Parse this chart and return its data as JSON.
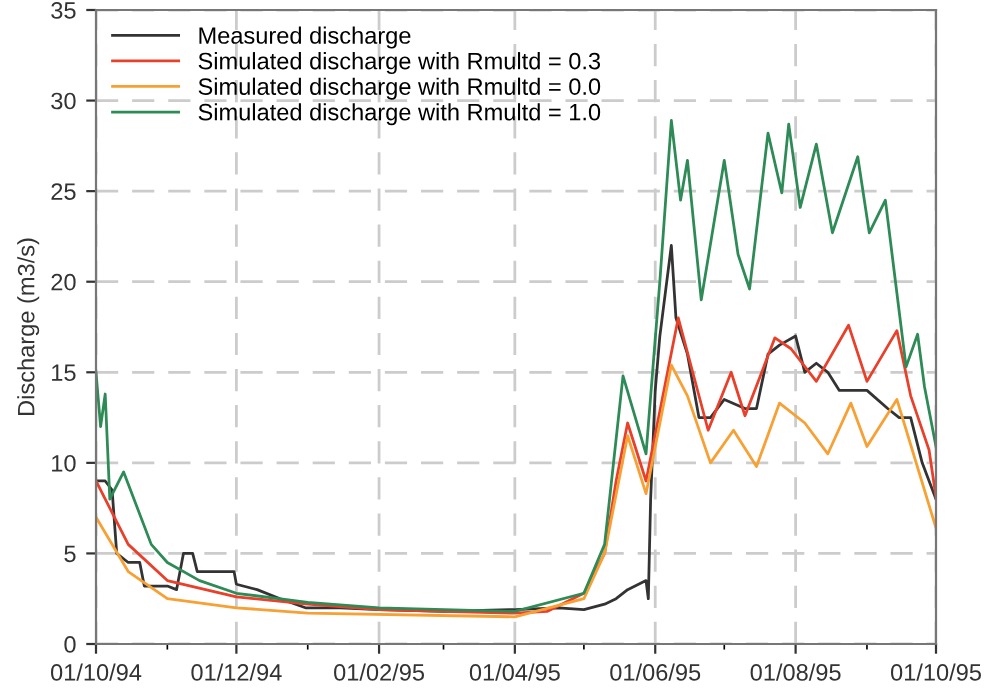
{
  "chart_data": {
    "type": "line",
    "ylabel": "Discharge (m3/s)",
    "ylim": [
      0,
      35
    ],
    "yticks": [
      0,
      5,
      10,
      15,
      20,
      25,
      30,
      35
    ],
    "xlim": [
      "1994-10-01",
      "1995-10-01"
    ],
    "xticks": [
      {
        "value": "1994-10-01",
        "label": "01/10/94"
      },
      {
        "value": "1994-12-01",
        "label": "01/12/94"
      },
      {
        "value": "1995-02-01",
        "label": "01/02/95"
      },
      {
        "value": "1995-04-01",
        "label": "01/04/95"
      },
      {
        "value": "1995-06-01",
        "label": "01/06/95"
      },
      {
        "value": "1995-08-01",
        "label": "01/08/95"
      },
      {
        "value": "1995-10-01",
        "label": "01/10/95"
      }
    ],
    "grid": true,
    "legend": "top left",
    "line_style": "solid",
    "marker": "none",
    "series": [
      {
        "name": "Measured discharge",
        "color": "#333333",
        "x": [
          "1994-10-01",
          "1994-10-05",
          "1994-10-08",
          "1994-10-10",
          "1994-10-15",
          "1994-10-20",
          "1994-10-22",
          "1994-11-01",
          "1994-11-05",
          "1994-11-08",
          "1994-11-12",
          "1994-11-14",
          "1994-11-30",
          "1994-12-01",
          "1994-12-10",
          "1994-12-20",
          "1994-12-31",
          "1995-01-15",
          "1995-02-01",
          "1995-03-01",
          "1995-04-01",
          "1995-04-20",
          "1995-05-01",
          "1995-05-10",
          "1995-05-15",
          "1995-05-20",
          "1995-05-28",
          "1995-05-29",
          "1995-05-30",
          "1995-06-01",
          "1995-06-03",
          "1995-06-08",
          "1995-06-10",
          "1995-06-15",
          "1995-06-20",
          "1995-06-25",
          "1995-07-01",
          "1995-07-10",
          "1995-07-15",
          "1995-07-20",
          "1995-07-25",
          "1995-08-01",
          "1995-08-05",
          "1995-08-10",
          "1995-08-15",
          "1995-08-20",
          "1995-09-01",
          "1995-09-10",
          "1995-09-15",
          "1995-09-20",
          "1995-09-25",
          "1995-09-28",
          "1995-10-01"
        ],
        "values": [
          9,
          9,
          8.5,
          5,
          4.5,
          4.5,
          3.2,
          3.2,
          3,
          5,
          5,
          4,
          4,
          3.3,
          3,
          2.5,
          2,
          2,
          1.9,
          1.8,
          1.9,
          2,
          1.9,
          2.2,
          2.5,
          3,
          3.5,
          2.5,
          8,
          14,
          17,
          22,
          18,
          16,
          12.5,
          12.5,
          13.5,
          13,
          13,
          16,
          16.5,
          17,
          15,
          15.5,
          15,
          14,
          14,
          13,
          12.5,
          12.5,
          10,
          9,
          8
        ]
      },
      {
        "name": "Simulated discharge with Rmultd = 0.3",
        "color": "#e8402a",
        "x": [
          "1994-10-01",
          "1994-10-15",
          "1994-11-01",
          "1994-12-01",
          "1995-01-01",
          "1995-02-01",
          "1995-04-01",
          "1995-04-15",
          "1995-05-01",
          "1995-05-10",
          "1995-05-15",
          "1995-05-20",
          "1995-05-28",
          "1995-06-11",
          "1995-06-24",
          "1995-07-04",
          "1995-07-10",
          "1995-07-23",
          "1995-07-30",
          "1995-08-10",
          "1995-08-24",
          "1995-09-01",
          "1995-09-14",
          "1995-09-20",
          "1995-09-28",
          "1995-10-01"
        ],
        "values": [
          9,
          5.5,
          3.5,
          2.6,
          2.2,
          1.9,
          1.7,
          1.8,
          2.8,
          5,
          9,
          12.2,
          9,
          18,
          11.8,
          15,
          12.6,
          16.9,
          16.3,
          14.5,
          17.6,
          14.5,
          17.3,
          13.7,
          10.7,
          8.1
        ]
      },
      {
        "name": "Simulated discharge with Rmultd = 0.0",
        "color": "#f7a033",
        "x": [
          "1994-10-01",
          "1994-10-15",
          "1994-11-01",
          "1994-12-01",
          "1995-01-01",
          "1995-04-01",
          "1995-05-01",
          "1995-05-10",
          "1995-05-20",
          "1995-05-28",
          "1995-06-08",
          "1995-06-15",
          "1995-06-25",
          "1995-07-05",
          "1995-07-15",
          "1995-07-25",
          "1995-08-05",
          "1995-08-15",
          "1995-08-25",
          "1995-09-01",
          "1995-09-14",
          "1995-09-20",
          "1995-10-01"
        ],
        "values": [
          7,
          4,
          2.5,
          2,
          1.7,
          1.5,
          2.5,
          5,
          11.5,
          8.3,
          15.4,
          13.7,
          10,
          11.8,
          9.8,
          13.3,
          12.2,
          10.5,
          13.3,
          10.9,
          13.5,
          11,
          6.4
        ]
      },
      {
        "name": "Simulated discharge with Rmultd = 1.0",
        "color": "#2e8b57",
        "x": [
          "1994-10-01",
          "1994-10-03",
          "1994-10-05",
          "1994-10-07",
          "1994-10-13",
          "1994-10-25",
          "1994-11-01",
          "1994-11-15",
          "1994-12-01",
          "1995-01-01",
          "1995-02-01",
          "1995-04-01",
          "1995-05-01",
          "1995-05-10",
          "1995-05-18",
          "1995-05-28",
          "1995-06-03",
          "1995-06-08",
          "1995-06-12",
          "1995-06-15",
          "1995-06-21",
          "1995-07-01",
          "1995-07-07",
          "1995-07-12",
          "1995-07-20",
          "1995-07-26",
          "1995-07-29",
          "1995-08-03",
          "1995-08-10",
          "1995-08-17",
          "1995-08-28",
          "1995-09-02",
          "1995-09-09",
          "1995-09-13",
          "1995-09-18",
          "1995-09-23",
          "1995-09-26",
          "1995-10-01"
        ],
        "values": [
          15,
          12,
          13.8,
          8,
          9.5,
          5.5,
          4.5,
          3.5,
          2.8,
          2.3,
          2,
          1.8,
          2.8,
          5.5,
          14.8,
          10.5,
          20,
          28.9,
          24.5,
          26.7,
          19,
          26.7,
          21.5,
          19.6,
          28.2,
          24.9,
          28.7,
          24.1,
          27.6,
          22.7,
          26.9,
          22.7,
          24.5,
          20.4,
          15.3,
          17.1,
          14.2,
          10.9
        ]
      }
    ]
  }
}
